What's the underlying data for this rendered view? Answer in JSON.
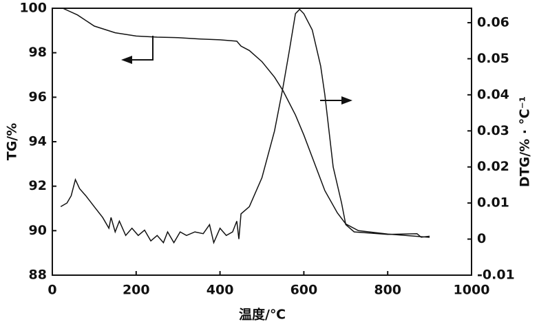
{
  "chart_data": {
    "type": "line",
    "x_label": "温度/℃",
    "y_label": "TG/%",
    "y2_label": "DTG/% · ℃⁻¹",
    "xlim": [
      0,
      1000
    ],
    "xticks": [
      0,
      200,
      400,
      600,
      800,
      1000
    ],
    "ylim": [
      88,
      100
    ],
    "yticks": [
      88,
      90,
      92,
      94,
      96,
      98,
      100
    ],
    "y2lim": [
      -0.01,
      0.064
    ],
    "y2ticks": [
      -0.01,
      0,
      0.01,
      0.02,
      0.03,
      0.04,
      0.05,
      0.06
    ],
    "series": [
      {
        "name": "TG",
        "color": "#111111",
        "axis": "y",
        "x": [
          25,
          60,
          100,
          150,
          200,
          250,
          300,
          350,
          400,
          440,
          450,
          470,
          500,
          530,
          550,
          580,
          600,
          620,
          650,
          680,
          700,
          730,
          800,
          900
        ],
        "values": [
          100,
          99.7,
          99.2,
          98.9,
          98.75,
          98.7,
          98.68,
          98.62,
          98.58,
          98.52,
          98.3,
          98.1,
          97.6,
          96.9,
          96.3,
          95.2,
          94.3,
          93.3,
          91.8,
          90.8,
          90.3,
          90.0,
          89.85,
          89.7
        ]
      },
      {
        "name": "DTG",
        "color": "#111111",
        "axis": "y2",
        "x": [
          20,
          35,
          45,
          55,
          65,
          80,
          100,
          120,
          135,
          140,
          150,
          160,
          175,
          190,
          205,
          220,
          235,
          250,
          265,
          275,
          290,
          305,
          320,
          340,
          360,
          375,
          385,
          400,
          415,
          430,
          440,
          445,
          450,
          470,
          500,
          530,
          550,
          565,
          580,
          590,
          600,
          620,
          640,
          650,
          670,
          690,
          700,
          720,
          800,
          870,
          880,
          900
        ],
        "values": [
          0.009,
          0.01,
          0.012,
          0.0165,
          0.014,
          0.012,
          0.009,
          0.006,
          0.003,
          0.006,
          0.002,
          0.005,
          0.001,
          0.003,
          0.001,
          0.0025,
          -0.0005,
          0.001,
          -0.001,
          0.002,
          -0.001,
          0.002,
          0.001,
          0.002,
          0.0015,
          0.004,
          -0.001,
          0.003,
          0.001,
          0.002,
          0.005,
          0.0,
          0.007,
          0.009,
          0.017,
          0.03,
          0.042,
          0.052,
          0.0625,
          0.0637,
          0.0625,
          0.058,
          0.048,
          0.04,
          0.02,
          0.01,
          0.004,
          0.002,
          0.0013,
          0.0015,
          0.0005,
          0.0008
        ]
      }
    ]
  }
}
